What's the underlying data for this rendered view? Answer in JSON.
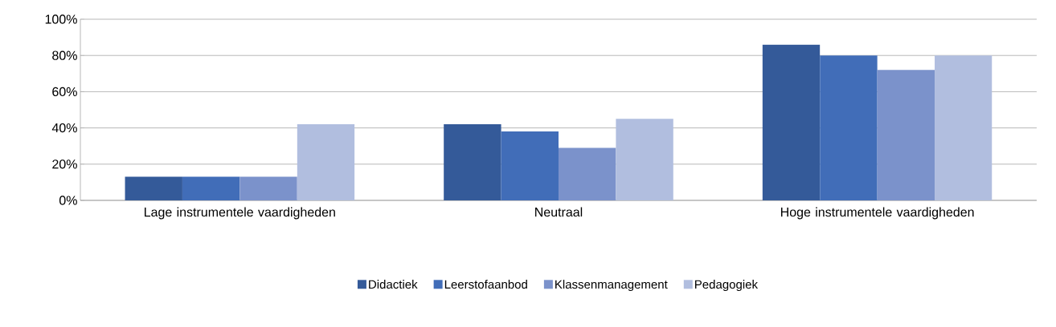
{
  "chart_data": {
    "type": "bar",
    "categories": [
      "Lage instrumentele vaardigheden",
      "Neutraal",
      "Hoge instrumentele vaardigheden"
    ],
    "series": [
      {
        "name": "Didactiek",
        "color": "#345a99",
        "values": [
          13,
          42,
          86
        ]
      },
      {
        "name": "Leerstofaanbod",
        "color": "#416db8",
        "values": [
          13,
          38,
          80
        ]
      },
      {
        "name": "Klassenmanagement",
        "color": "#7b92cb",
        "values": [
          13,
          29,
          72
        ]
      },
      {
        "name": "Pedagogiek",
        "color": "#b1bedf",
        "values": [
          42,
          45,
          80
        ]
      }
    ],
    "ylim": [
      0,
      100
    ],
    "yticks": [
      {
        "value": 0,
        "label": "0%"
      },
      {
        "value": 20,
        "label": "20%"
      },
      {
        "value": 40,
        "label": "40%"
      },
      {
        "value": 60,
        "label": "60%"
      },
      {
        "value": 80,
        "label": "80%"
      },
      {
        "value": 100,
        "label": "100%"
      }
    ],
    "grid": "y",
    "legend": "bottom"
  }
}
